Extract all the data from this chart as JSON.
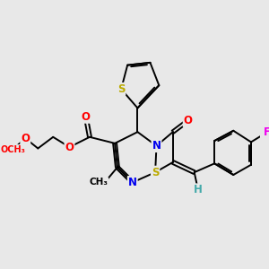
{
  "bg_color": "#e8e8e8",
  "bond_color": "#000000",
  "bond_width": 1.4,
  "atom_colors": {
    "S": "#bbaa00",
    "O": "#ff0000",
    "N": "#0000ee",
    "F": "#ee00ee",
    "H": "#44aaaa",
    "C": "#000000"
  },
  "fig_width": 3.0,
  "fig_height": 3.0,
  "dpi": 100
}
